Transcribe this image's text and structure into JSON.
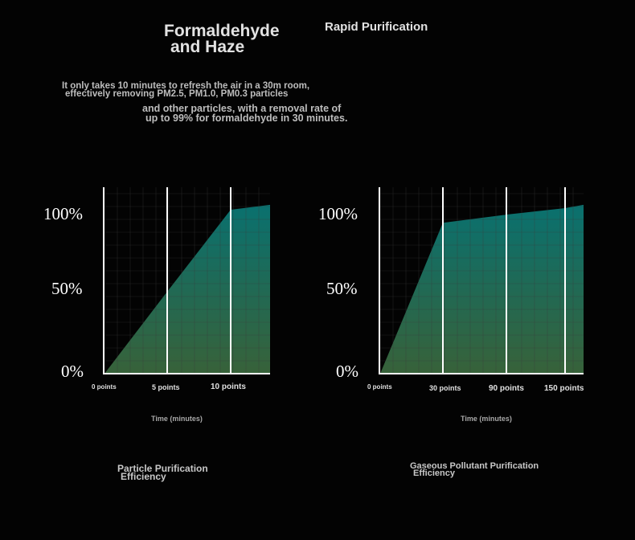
{
  "header": {
    "title_line1": "Formaldehyde",
    "title_line2": "and Haze",
    "subtitle": "Rapid Purification"
  },
  "description": {
    "line1": "It only takes 10 minutes to refresh the air in a 30m room,",
    "line2": "effectively removing PM2.5, PM1.0, PM0.3 particles",
    "line3": "and other particles, with a removal rate of",
    "line4": "up to 99% for formaldehyde in 30 minutes."
  },
  "colors": {
    "background": "#030303",
    "fill_top": "#0a7a78",
    "fill_bottom": "#3c6a3e",
    "marker_line": "#ffffff",
    "grid": "#3a3a3a"
  },
  "chart_data": [
    {
      "type": "area",
      "title_line1": "Particle Purification",
      "title_line2": "Efficiency",
      "xlabel": "Time (minutes)",
      "y_ticks": [
        "100%",
        "50%",
        "0%"
      ],
      "x_ticks": [
        "0 points",
        "5 points",
        "10 points"
      ],
      "x": [
        0,
        5,
        10,
        13
      ],
      "y": [
        0,
        50,
        100,
        103
      ],
      "markers": [
        5,
        10
      ],
      "xlim": [
        0,
        13
      ],
      "ylim": [
        0,
        100
      ],
      "grid": true
    },
    {
      "type": "area",
      "title_line1": "Gaseous Pollutant Purification",
      "title_line2": "Efficiency",
      "xlabel": "Time (minutes)",
      "y_ticks": [
        "100%",
        "50%",
        "0%"
      ],
      "x_ticks": [
        "0 points",
        "30 points",
        "90 points",
        "150 points"
      ],
      "x": [
        0,
        30,
        90,
        150,
        170
      ],
      "y": [
        0,
        92,
        97,
        101,
        103
      ],
      "markers": [
        30,
        90,
        150
      ],
      "xlim": [
        0,
        170
      ],
      "ylim": [
        0,
        100
      ],
      "grid": true
    }
  ]
}
